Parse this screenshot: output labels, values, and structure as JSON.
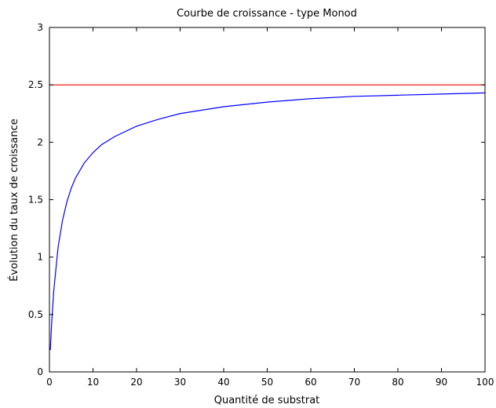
{
  "chart_data": {
    "type": "line",
    "title": "Courbe de croissance - type Monod",
    "xlabel": "Quantité de substrat",
    "ylabel": "Évolution du taux de croissance",
    "xlim": [
      0,
      100
    ],
    "ylim": [
      0,
      3
    ],
    "xticks": [
      0,
      10,
      20,
      30,
      40,
      50,
      60,
      70,
      80,
      90,
      100
    ],
    "yticks": [
      0,
      0.5,
      1,
      1.5,
      2,
      2.5,
      3
    ],
    "xtick_labels": [
      "0",
      "10",
      "20",
      "30",
      "40",
      "50",
      "60",
      "70",
      "80",
      "90",
      "100"
    ],
    "ytick_labels": [
      "0",
      "0.5",
      "1",
      "1.5",
      "2",
      "2.5",
      "3"
    ],
    "grid": false,
    "series": [
      {
        "color": "#0000ff",
        "x": [
          0.2,
          0.5,
          1,
          2,
          3,
          4,
          5,
          6,
          8,
          10,
          12,
          15,
          20,
          25,
          30,
          40,
          50,
          60,
          70,
          80,
          90,
          100
        ],
        "y": [
          0.19,
          0.42,
          0.71,
          1.09,
          1.32,
          1.48,
          1.6,
          1.69,
          1.82,
          1.91,
          1.98,
          2.05,
          2.14,
          2.2,
          2.25,
          2.31,
          2.35,
          2.38,
          2.4,
          2.41,
          2.42,
          2.43
        ]
      },
      {
        "color": "#ff0000",
        "x": [
          0,
          100
        ],
        "y": [
          2.5,
          2.5
        ]
      }
    ]
  }
}
